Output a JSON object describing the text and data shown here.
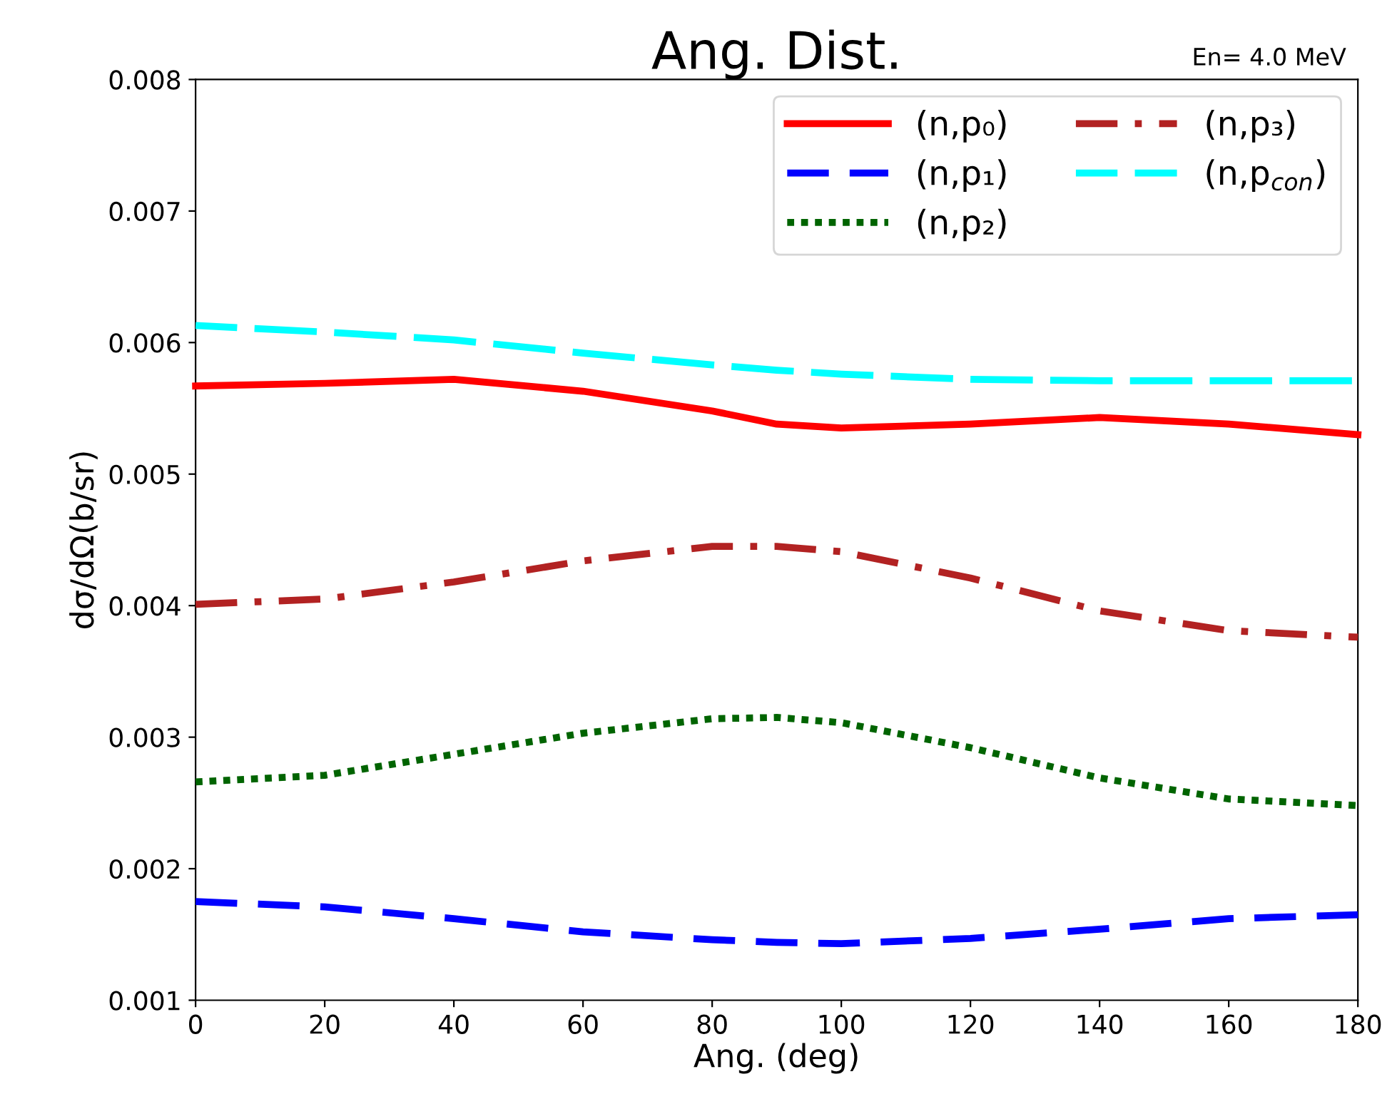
{
  "chart_data": {
    "type": "line",
    "title": "Ang. Dist.",
    "xlabel": "Ang. (deg)",
    "ylabel": "dσ/dΩ(b/sr)",
    "annotations": [
      "En= 4.0 MeV"
    ],
    "x": [
      0,
      20,
      40,
      60,
      80,
      90,
      100,
      120,
      140,
      160,
      180
    ],
    "xlim": [
      0,
      180
    ],
    "xticks": [
      0,
      20,
      40,
      60,
      80,
      100,
      120,
      140,
      160,
      180
    ],
    "ylim": [
      0.001,
      0.008
    ],
    "yticks": [
      0.001,
      0.002,
      0.003,
      0.004,
      0.005,
      0.006,
      0.007,
      0.008
    ],
    "grid": false,
    "legend": "top right",
    "marker": "none",
    "series": [
      {
        "name": "(n,p₀)",
        "color": "#ff0000",
        "line_style": "solid",
        "values": [
          0.00567,
          0.00569,
          0.00572,
          0.00563,
          0.00548,
          0.00538,
          0.00535,
          0.00538,
          0.00543,
          0.00538,
          0.0053
        ]
      },
      {
        "name": "(n,p₁)",
        "color": "#0000ff",
        "line_style": "dashed",
        "values": [
          0.00175,
          0.00171,
          0.00162,
          0.00152,
          0.00146,
          0.00144,
          0.00143,
          0.00147,
          0.00154,
          0.00162,
          0.00165
        ]
      },
      {
        "name": "(n,p₂)",
        "color": "#006400",
        "line_style": "dotted",
        "values": [
          0.00266,
          0.00271,
          0.00287,
          0.00303,
          0.00314,
          0.00315,
          0.00311,
          0.00292,
          0.00269,
          0.00253,
          0.00248
        ]
      },
      {
        "name": "(n,p₃)",
        "color": "#b22222",
        "line_style": "dashdot",
        "values": [
          0.00401,
          0.00405,
          0.00418,
          0.00434,
          0.00445,
          0.00445,
          0.00441,
          0.00421,
          0.00396,
          0.00381,
          0.00376
        ]
      },
      {
        "name": "(n,p$_{con}$)",
        "color": "#00ffff",
        "line_style": "longdash",
        "values": [
          0.00613,
          0.00608,
          0.00602,
          0.00592,
          0.00583,
          0.00579,
          0.00576,
          0.00572,
          0.00571,
          0.00571,
          0.00571
        ]
      }
    ]
  }
}
